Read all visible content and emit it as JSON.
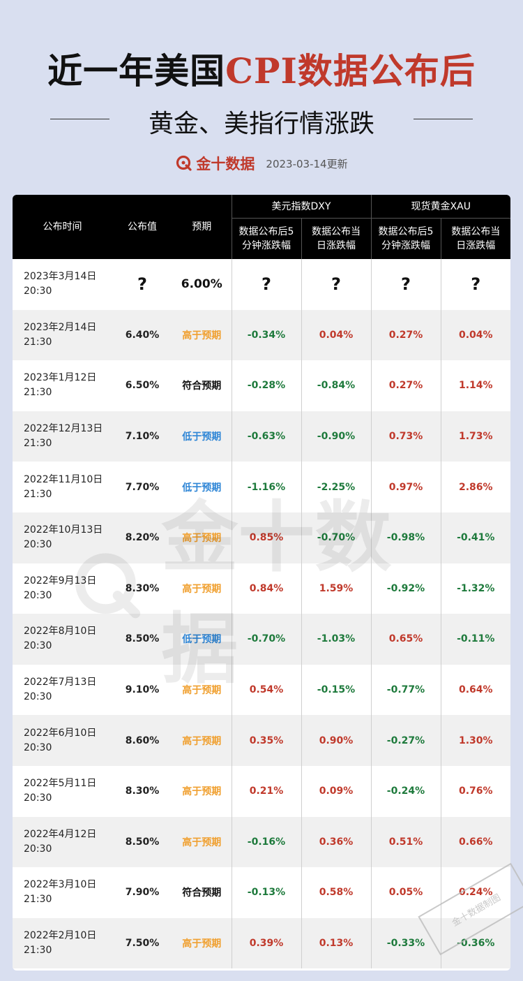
{
  "header": {
    "title_part1": "近一年美国",
    "title_part2": "CPI数据公布后",
    "subtitle": "黄金、美指行情涨跌",
    "brand": "金十数据",
    "update": "2023-03-14更新"
  },
  "colors": {
    "accent": "#c0392b",
    "positive": "#c0392b",
    "negative": "#1e7a3c",
    "above": "#f0a030",
    "below": "#2f86d6"
  },
  "table": {
    "headers": {
      "time": "公布时间",
      "value": "公布值",
      "forecast": "预期",
      "dxy_group": "美元指数DXY",
      "xau_group": "现货黄金XAU",
      "dxy_5min": "数据公布后5分钟涨跌幅",
      "dxy_day": "数据公布当日涨跌幅",
      "xau_5min": "数据公布后5分钟涨跌幅",
      "xau_day": "数据公布当日涨跌幅"
    },
    "rows": [
      {
        "date": "2023年3月14日",
        "time": "20:30",
        "value": "?",
        "forecast": "6.00%",
        "dxy5": "?",
        "dxyd": "?",
        "xau5": "?",
        "xaud": "?"
      },
      {
        "date": "2023年2月14日",
        "time": "21:30",
        "value": "6.40%",
        "forecast": "高于预期",
        "dxy5": "-0.34%",
        "dxyd": "0.04%",
        "xau5": "0.27%",
        "xaud": "0.04%"
      },
      {
        "date": "2023年1月12日",
        "time": "21:30",
        "value": "6.50%",
        "forecast": "符合预期",
        "dxy5": "-0.28%",
        "dxyd": "-0.84%",
        "xau5": "0.27%",
        "xaud": "1.14%"
      },
      {
        "date": "2022年12月13日",
        "time": "21:30",
        "value": "7.10%",
        "forecast": "低于预期",
        "dxy5": "-0.63%",
        "dxyd": "-0.90%",
        "xau5": "0.73%",
        "xaud": "1.73%"
      },
      {
        "date": "2022年11月10日",
        "time": "21:30",
        "value": "7.70%",
        "forecast": "低于预期",
        "dxy5": "-1.16%",
        "dxyd": "-2.25%",
        "xau5": "0.97%",
        "xaud": "2.86%"
      },
      {
        "date": "2022年10月13日",
        "time": "20:30",
        "value": "8.20%",
        "forecast": "高于预期",
        "dxy5": "0.85%",
        "dxyd": "-0.70%",
        "xau5": "-0.98%",
        "xaud": "-0.41%"
      },
      {
        "date": "2022年9月13日",
        "time": "20:30",
        "value": "8.30%",
        "forecast": "高于预期",
        "dxy5": "0.84%",
        "dxyd": "1.59%",
        "xau5": "-0.92%",
        "xaud": "-1.32%"
      },
      {
        "date": "2022年8月10日",
        "time": "20:30",
        "value": "8.50%",
        "forecast": "低于预期",
        "dxy5": "-0.70%",
        "dxyd": "-1.03%",
        "xau5": "0.65%",
        "xaud": "-0.11%"
      },
      {
        "date": "2022年7月13日",
        "time": "20:30",
        "value": "9.10%",
        "forecast": "高于预期",
        "dxy5": "0.54%",
        "dxyd": "-0.15%",
        "xau5": "-0.77%",
        "xaud": "0.64%"
      },
      {
        "date": "2022年6月10日",
        "time": "20:30",
        "value": "8.60%",
        "forecast": "高于预期",
        "dxy5": "0.35%",
        "dxyd": "0.90%",
        "xau5": "-0.27%",
        "xaud": "1.30%"
      },
      {
        "date": "2022年5月11日",
        "time": "20:30",
        "value": "8.30%",
        "forecast": "高于预期",
        "dxy5": "0.21%",
        "dxyd": "0.09%",
        "xau5": "-0.24%",
        "xaud": "0.76%"
      },
      {
        "date": "2022年4月12日",
        "time": "20:30",
        "value": "8.50%",
        "forecast": "高于预期",
        "dxy5": "-0.16%",
        "dxyd": "0.36%",
        "xau5": "0.51%",
        "xaud": "0.66%"
      },
      {
        "date": "2022年3月10日",
        "time": "21:30",
        "value": "7.90%",
        "forecast": "符合预期",
        "dxy5": "-0.13%",
        "dxyd": "0.58%",
        "xau5": "0.05%",
        "xaud": "0.24%"
      },
      {
        "date": "2022年2月10日",
        "time": "21:30",
        "value": "7.50%",
        "forecast": "高于预期",
        "dxy5": "0.39%",
        "dxyd": "0.13%",
        "xau5": "-0.33%",
        "xaud": "-0.36%"
      }
    ]
  },
  "watermark": {
    "text": "金十数据",
    "stamp": "金十数据制图"
  }
}
